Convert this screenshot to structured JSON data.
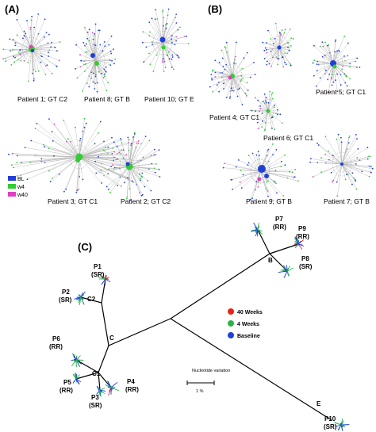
{
  "panel_labels": {
    "a": "(A)",
    "b": "(B)",
    "c": "(C)"
  },
  "panel_a": {
    "networks": [
      {
        "label": "Patient 1; GT C2"
      },
      {
        "label": "Patient 8; GT B"
      },
      {
        "label": "Patient 10; GT E"
      },
      {
        "label": "Patient 3; GT C1"
      },
      {
        "label": "Patient 2; GT C2"
      }
    ],
    "legend": [
      {
        "label": "BL",
        "color": "#1f3fd6"
      },
      {
        "label": "w4",
        "color": "#33cc33"
      },
      {
        "label": "w40",
        "color": "#e040c0"
      }
    ]
  },
  "panel_b": {
    "networks": [
      {
        "label": "Patient 5; GT C1"
      },
      {
        "label": "Patient 4; GT C1"
      },
      {
        "label": "Patient 6; GT C1"
      },
      {
        "label": "Patient 9; GT B"
      },
      {
        "label": "Patient 7; GT B"
      }
    ]
  },
  "panel_c": {
    "clade_labels": [
      "B",
      "C",
      "C1",
      "C2",
      "E"
    ],
    "patients": [
      {
        "id": "P1",
        "response": "(SR)"
      },
      {
        "id": "P2",
        "response": "(SR)"
      },
      {
        "id": "P6",
        "response": "(RR)"
      },
      {
        "id": "P5",
        "response": "(RR)"
      },
      {
        "id": "P3",
        "response": "(SR)"
      },
      {
        "id": "P4",
        "response": "(RR)"
      },
      {
        "id": "P7",
        "response": "(RR)"
      },
      {
        "id": "P9",
        "response": "(RR)"
      },
      {
        "id": "P8",
        "response": "(SR)"
      },
      {
        "id": "P10",
        "response": "(SR)"
      }
    ],
    "legend": [
      {
        "label": "40 Weeks",
        "color": "#e8231a"
      },
      {
        "label": "4 Weeks",
        "color": "#2db34a"
      },
      {
        "label": "Baseline",
        "color": "#1f3fd6"
      }
    ],
    "scale_bar": {
      "title": "Nucleotide variation",
      "value": "1 %"
    }
  }
}
